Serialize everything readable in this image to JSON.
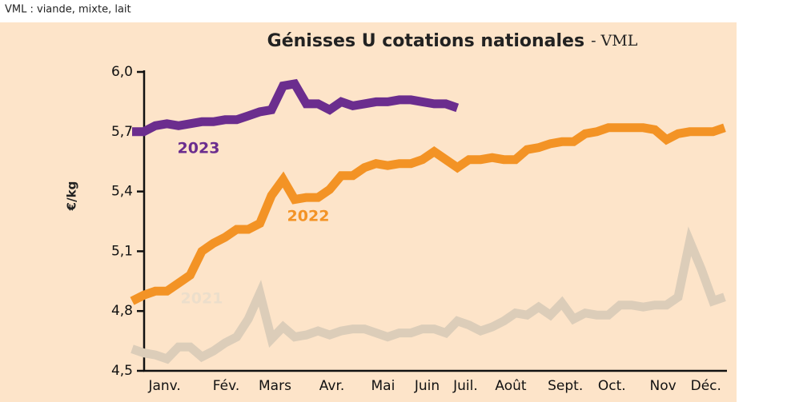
{
  "chart_data": {
    "type": "line",
    "note_top": "VML : viande, mixte, lait",
    "title": "Génisses U cotations nationales",
    "subtitle": "- VML",
    "y_label": "€/kg",
    "x": [
      1,
      2,
      3,
      4,
      5,
      6,
      7,
      8,
      9,
      10,
      11,
      12,
      13,
      14,
      15,
      16,
      17,
      18,
      19,
      20,
      21,
      22,
      23,
      24,
      25,
      26,
      27,
      28,
      29,
      30,
      31,
      32,
      33,
      34,
      35,
      36,
      37,
      38,
      39,
      40,
      41,
      42,
      43,
      44,
      45,
      46,
      47,
      48,
      49,
      50,
      51,
      52
    ],
    "xlim": [
      1,
      52
    ],
    "xticks": [
      {
        "value": 3.8,
        "label": "Janv."
      },
      {
        "value": 9.1,
        "label": "Fév."
      },
      {
        "value": 13.3,
        "label": "Mars"
      },
      {
        "value": 18.2,
        "label": "Avr."
      },
      {
        "value": 22.6,
        "label": "Mai"
      },
      {
        "value": 26.4,
        "label": "Juin"
      },
      {
        "value": 29.7,
        "label": "Juil."
      },
      {
        "value": 33.6,
        "label": "Août"
      },
      {
        "value": 38.3,
        "label": "Sept."
      },
      {
        "value": 42.3,
        "label": "Oct."
      },
      {
        "value": 46.7,
        "label": "Nov"
      },
      {
        "value": 50.4,
        "label": "Déc."
      }
    ],
    "ylim": [
      4.5,
      6.0
    ],
    "yticks": [
      {
        "value": 4.5,
        "label": "4,5"
      },
      {
        "value": 4.8,
        "label": "4,8"
      },
      {
        "value": 5.1,
        "label": "5,1"
      },
      {
        "value": 5.4,
        "label": "5,4"
      },
      {
        "value": 5.7,
        "label": "5,7"
      },
      {
        "value": 6.0,
        "label": "6,0"
      }
    ],
    "series": [
      {
        "name": "2021",
        "color": "#dccdb9",
        "label_color": "#ecdecb",
        "values": [
          4.61,
          4.59,
          4.58,
          4.56,
          4.62,
          4.62,
          4.57,
          4.6,
          4.64,
          4.67,
          4.76,
          4.89,
          4.66,
          4.72,
          4.67,
          4.68,
          4.7,
          4.68,
          4.7,
          4.71,
          4.71,
          4.69,
          4.67,
          4.69,
          4.69,
          4.71,
          4.71,
          4.69,
          4.75,
          4.73,
          4.7,
          4.72,
          4.75,
          4.79,
          4.78,
          4.82,
          4.78,
          4.84,
          4.76,
          4.79,
          4.78,
          4.78,
          4.83,
          4.83,
          4.82,
          4.83,
          4.83,
          4.87,
          5.15,
          5.01,
          4.85,
          4.87
        ]
      },
      {
        "name": "2022",
        "color": "#f39325",
        "label_color": "#f39325",
        "values": [
          4.85,
          4.88,
          4.9,
          4.9,
          4.94,
          4.98,
          5.1,
          5.14,
          5.17,
          5.21,
          5.21,
          5.24,
          5.38,
          5.46,
          5.36,
          5.37,
          5.37,
          5.41,
          5.48,
          5.48,
          5.52,
          5.54,
          5.53,
          5.54,
          5.54,
          5.56,
          5.6,
          5.56,
          5.52,
          5.56,
          5.56,
          5.57,
          5.56,
          5.56,
          5.61,
          5.62,
          5.64,
          5.65,
          5.65,
          5.69,
          5.7,
          5.72,
          5.72,
          5.72,
          5.72,
          5.71,
          5.66,
          5.69,
          5.7,
          5.7,
          5.7,
          5.72
        ]
      },
      {
        "name": "2023",
        "color": "#6b2d8e",
        "label_color": "#6b2d8e",
        "values": [
          5.7,
          5.7,
          5.73,
          5.74,
          5.73,
          5.74,
          5.75,
          5.75,
          5.76,
          5.76,
          5.78,
          5.8,
          5.81,
          5.93,
          5.94,
          5.84,
          5.84,
          5.81,
          5.85,
          5.83,
          5.84,
          5.85,
          5.85,
          5.86,
          5.86,
          5.85,
          5.84,
          5.84,
          5.82,
          null,
          null,
          null,
          null,
          null,
          null,
          null,
          null,
          null,
          null,
          null,
          null,
          null,
          null,
          null,
          null,
          null,
          null,
          null,
          null,
          null,
          null,
          null
        ]
      }
    ]
  }
}
